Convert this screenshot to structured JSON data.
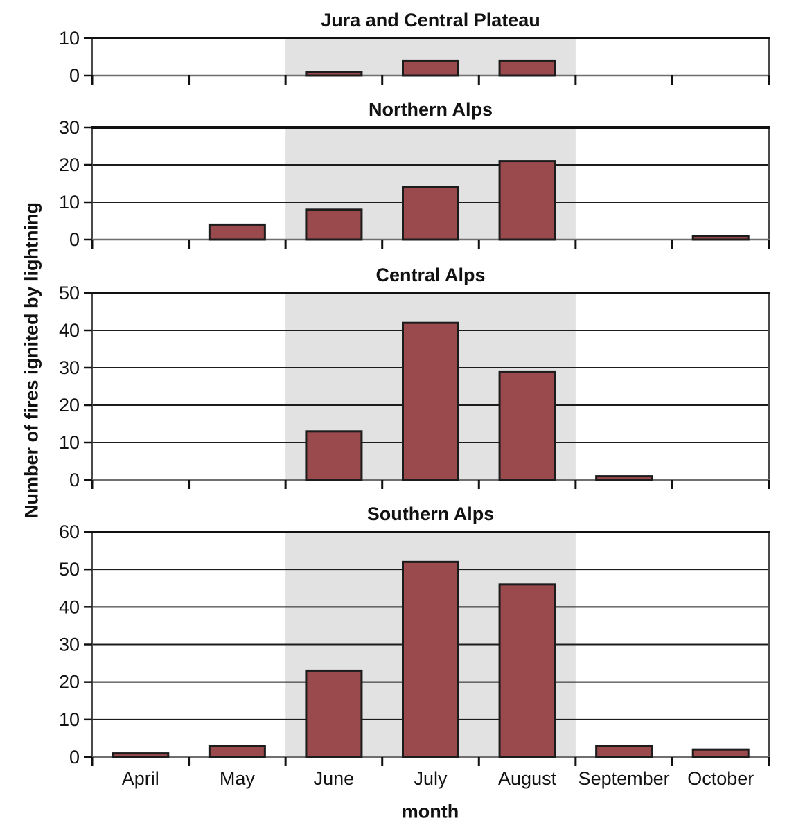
{
  "figure": {
    "ylabel": "Number of fires ignited by lightning",
    "xlabel": "month",
    "shaded_months": [
      "June",
      "July",
      "August"
    ],
    "colors": {
      "bar_fill": "#9a4a4d",
      "bar_stroke": "#1c1c1c",
      "shade": "#e2e2e2",
      "grid": "#1c1c1c",
      "top_border": "#111111",
      "baseline": "#6f6f6f",
      "side_border": "#4a4a4a",
      "tick": "#111111",
      "text": "#111111"
    }
  },
  "chart_data": [
    {
      "type": "bar",
      "title": "Jura and Central Plateau",
      "categories": [
        "April",
        "May",
        "June",
        "July",
        "August",
        "September",
        "October"
      ],
      "values": [
        0,
        0,
        1,
        4,
        4,
        0,
        0
      ],
      "xlabel": "month",
      "ylabel": "Number of fires ignited by lightning",
      "ylim": [
        0,
        10
      ],
      "ytick_step": 10,
      "grid": true,
      "shaded_band": [
        "June",
        "August"
      ]
    },
    {
      "type": "bar",
      "title": "Northern Alps",
      "categories": [
        "April",
        "May",
        "June",
        "July",
        "August",
        "September",
        "October"
      ],
      "values": [
        0,
        4,
        8,
        14,
        21,
        0,
        1
      ],
      "xlabel": "month",
      "ylabel": "Number of fires ignited by lightning",
      "ylim": [
        0,
        30
      ],
      "ytick_step": 10,
      "grid": true,
      "shaded_band": [
        "June",
        "August"
      ]
    },
    {
      "type": "bar",
      "title": "Central Alps",
      "categories": [
        "April",
        "May",
        "June",
        "July",
        "August",
        "September",
        "October"
      ],
      "values": [
        0,
        0,
        13,
        42,
        29,
        1,
        0
      ],
      "xlabel": "month",
      "ylabel": "Number of fires ignited by lightning",
      "ylim": [
        0,
        50
      ],
      "ytick_step": 10,
      "grid": true,
      "shaded_band": [
        "June",
        "August"
      ]
    },
    {
      "type": "bar",
      "title": "Southern Alps",
      "categories": [
        "April",
        "May",
        "June",
        "July",
        "August",
        "September",
        "October"
      ],
      "values": [
        1,
        3,
        23,
        52,
        46,
        3,
        2
      ],
      "xlabel": "month",
      "ylabel": "Number of fires ignited by lightning",
      "ylim": [
        0,
        60
      ],
      "ytick_step": 10,
      "grid": true,
      "shaded_band": [
        "June",
        "August"
      ]
    }
  ]
}
